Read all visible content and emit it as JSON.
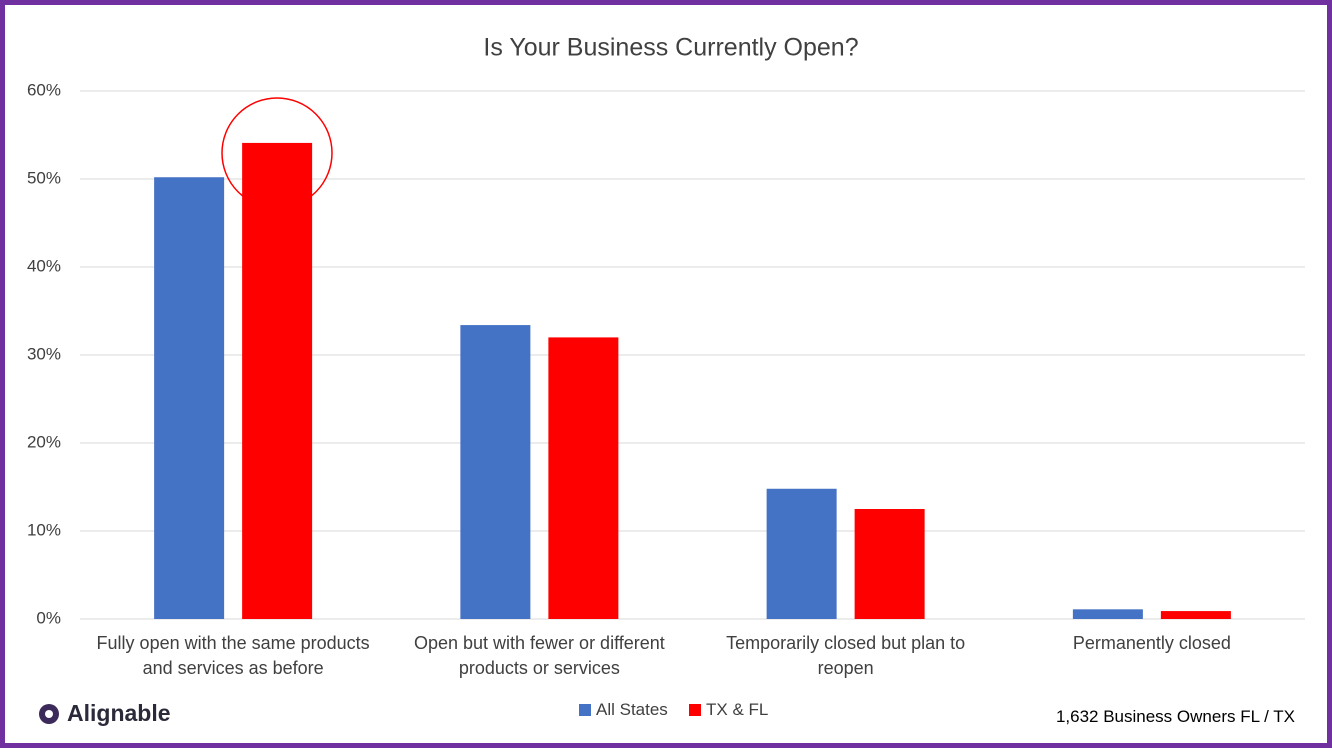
{
  "chart_data": {
    "type": "bar",
    "title": "Is Your Business Currently Open?",
    "categories": [
      "Fully open with the same products and services as before",
      "Open but with fewer or different products or services",
      "Temporarily closed but plan to reopen",
      "Permanently closed"
    ],
    "series": [
      {
        "name": "All States",
        "color": "#4472c4",
        "values": [
          50.2,
          33.4,
          14.8,
          1.1
        ]
      },
      {
        "name": "TX & FL",
        "color": "#ff0000",
        "values": [
          54.1,
          32.0,
          12.5,
          0.9
        ]
      }
    ],
    "ylim": [
      0,
      60
    ],
    "yticks": [
      {
        "value": 0,
        "label": "0%"
      },
      {
        "value": 10,
        "label": "10%"
      },
      {
        "value": 20,
        "label": "20%"
      },
      {
        "value": 30,
        "label": "30%"
      },
      {
        "value": 40,
        "label": "40%"
      },
      {
        "value": 50,
        "label": "50%"
      },
      {
        "value": 60,
        "label": "60%"
      }
    ],
    "grid": true,
    "legend": "bottom",
    "brand": "Alignable",
    "note": "1,632 Business Owners FL / TX"
  }
}
